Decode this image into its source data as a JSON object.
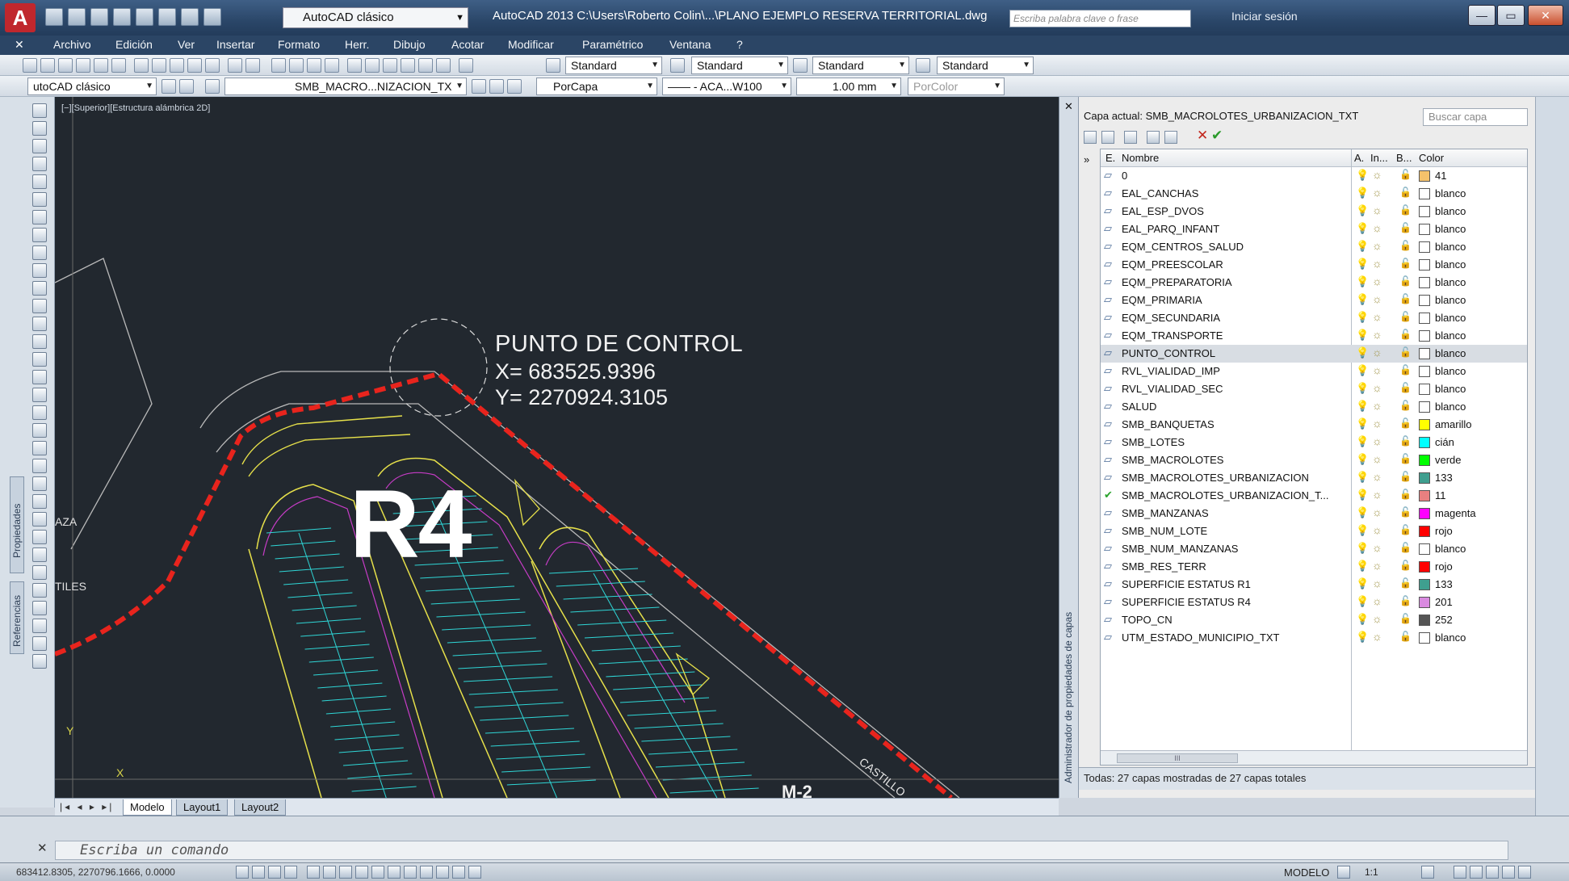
{
  "app": {
    "logo": "A",
    "workspace": "AutoCAD clásico",
    "title": "AutoCAD 2013   C:\\Users\\Roberto Colin\\...\\PLANO EJEMPLO RESERVA TERRITORIAL.dwg",
    "search_placeholder": "Escriba palabra clave o frase",
    "signin": "Iniciar sesión",
    "help": "?"
  },
  "menu": {
    "items": [
      "Archivo",
      "Edición",
      "Ver",
      "Insertar",
      "Formato",
      "Herr.",
      "Dibujo",
      "Acotar",
      "Modificar",
      "Paramétrico",
      "Ventana",
      "?"
    ]
  },
  "toolbar1": {
    "text_style": "Standard",
    "dim_style": "Standard",
    "table_style": "Standard",
    "mleader_style": "Standard"
  },
  "toolbar2": {
    "workspace": "utoCAD clásico",
    "layer": "SMB_MACRO...NIZACION_TX",
    "color": "PorCapa",
    "linetype": "—— - ACA...W100",
    "lineweight": "1.00 mm",
    "plotstyle": "PorColor"
  },
  "side_tabs": {
    "properties": "Propiedades",
    "references": "Referencias"
  },
  "drawing": {
    "viewport_label": "[−][Superior][Estructura alámbrica 2D]",
    "control_title": "PUNTO DE CONTROL",
    "control_x": "X= 683525.9396",
    "control_y": "Y= 2270924.3105",
    "block_label": "R4",
    "label_aza": "AZA",
    "label_tiles": "TILES",
    "label_castillo": "CASTILLO",
    "label_m": "M-2"
  },
  "layout_tabs": [
    "Modelo",
    "Layout1",
    "Layout2"
  ],
  "layer_manager": {
    "panel_title": "Administrador de propiedades de capas",
    "current_layer": "Capa actual: SMB_MACROLOTES_URBANIZACION_TXT",
    "search_placeholder": "Buscar capa",
    "headers": {
      "status": "E.",
      "name": "Nombre",
      "on": "A.",
      "freeze": "In...",
      "lock": "B...",
      "color": "Color"
    },
    "layers": [
      {
        "name": "0",
        "color_name": "41",
        "hex": "#f5c26b",
        "current": false,
        "selected": false
      },
      {
        "name": "EAL_CANCHAS",
        "color_name": "blanco",
        "hex": "#ffffff",
        "current": false,
        "selected": false
      },
      {
        "name": "EAL_ESP_DVOS",
        "color_name": "blanco",
        "hex": "#ffffff",
        "current": false,
        "selected": false
      },
      {
        "name": "EAL_PARQ_INFANT",
        "color_name": "blanco",
        "hex": "#ffffff",
        "current": false,
        "selected": false
      },
      {
        "name": "EQM_CENTROS_SALUD",
        "color_name": "blanco",
        "hex": "#ffffff",
        "current": false,
        "selected": false
      },
      {
        "name": "EQM_PREESCOLAR",
        "color_name": "blanco",
        "hex": "#ffffff",
        "current": false,
        "selected": false
      },
      {
        "name": "EQM_PREPARATORIA",
        "color_name": "blanco",
        "hex": "#ffffff",
        "current": false,
        "selected": false
      },
      {
        "name": "EQM_PRIMARIA",
        "color_name": "blanco",
        "hex": "#ffffff",
        "current": false,
        "selected": false
      },
      {
        "name": "EQM_SECUNDARIA",
        "color_name": "blanco",
        "hex": "#ffffff",
        "current": false,
        "selected": false
      },
      {
        "name": "EQM_TRANSPORTE",
        "color_name": "blanco",
        "hex": "#ffffff",
        "current": false,
        "selected": false
      },
      {
        "name": "PUNTO_CONTROL",
        "color_name": "blanco",
        "hex": "#ffffff",
        "current": false,
        "selected": true
      },
      {
        "name": "RVL_VIALIDAD_IMP",
        "color_name": "blanco",
        "hex": "#ffffff",
        "current": false,
        "selected": false
      },
      {
        "name": "RVL_VIALIDAD_SEC",
        "color_name": "blanco",
        "hex": "#ffffff",
        "current": false,
        "selected": false
      },
      {
        "name": "SALUD",
        "color_name": "blanco",
        "hex": "#ffffff",
        "current": false,
        "selected": false
      },
      {
        "name": "SMB_BANQUETAS",
        "color_name": "amarillo",
        "hex": "#ffff00",
        "current": false,
        "selected": false
      },
      {
        "name": "SMB_LOTES",
        "color_name": "cián",
        "hex": "#00ffff",
        "current": false,
        "selected": false
      },
      {
        "name": "SMB_MACROLOTES",
        "color_name": "verde",
        "hex": "#00ff00",
        "current": false,
        "selected": false
      },
      {
        "name": "SMB_MACROLOTES_URBANIZACION",
        "color_name": "133",
        "hex": "#3f9f8f",
        "current": false,
        "selected": false
      },
      {
        "name": "SMB_MACROLOTES_URBANIZACION_T...",
        "color_name": "11",
        "hex": "#e88080",
        "current": true,
        "selected": false
      },
      {
        "name": "SMB_MANZANAS",
        "color_name": "magenta",
        "hex": "#ff00ff",
        "current": false,
        "selected": false
      },
      {
        "name": "SMB_NUM_LOTE",
        "color_name": "rojo",
        "hex": "#ff0000",
        "current": false,
        "selected": false
      },
      {
        "name": "SMB_NUM_MANZANAS",
        "color_name": "blanco",
        "hex": "#ffffff",
        "current": false,
        "selected": false
      },
      {
        "name": "SMB_RES_TERR",
        "color_name": "rojo",
        "hex": "#ff0000",
        "current": false,
        "selected": false
      },
      {
        "name": "SUPERFICIE ESTATUS R1",
        "color_name": "133",
        "hex": "#3f9f8f",
        "current": false,
        "selected": false
      },
      {
        "name": "SUPERFICIE ESTATUS R4",
        "color_name": "201",
        "hex": "#d98ae0",
        "current": false,
        "selected": false
      },
      {
        "name": "TOPO_CN",
        "color_name": "252",
        "hex": "#555555",
        "current": false,
        "selected": false
      },
      {
        "name": "UTM_ESTADO_MUNICIPIO_TXT",
        "color_name": "blanco",
        "hex": "#ffffff",
        "current": false,
        "selected": false
      }
    ],
    "status": "Todas: 27 capas mostradas de 27 capas totales"
  },
  "command": {
    "placeholder": "Escriba un comando"
  },
  "statusbar": {
    "coords": "683412.8305, 2270796.1666, 0.0000",
    "model": "MODELO",
    "scale": "1:1"
  }
}
